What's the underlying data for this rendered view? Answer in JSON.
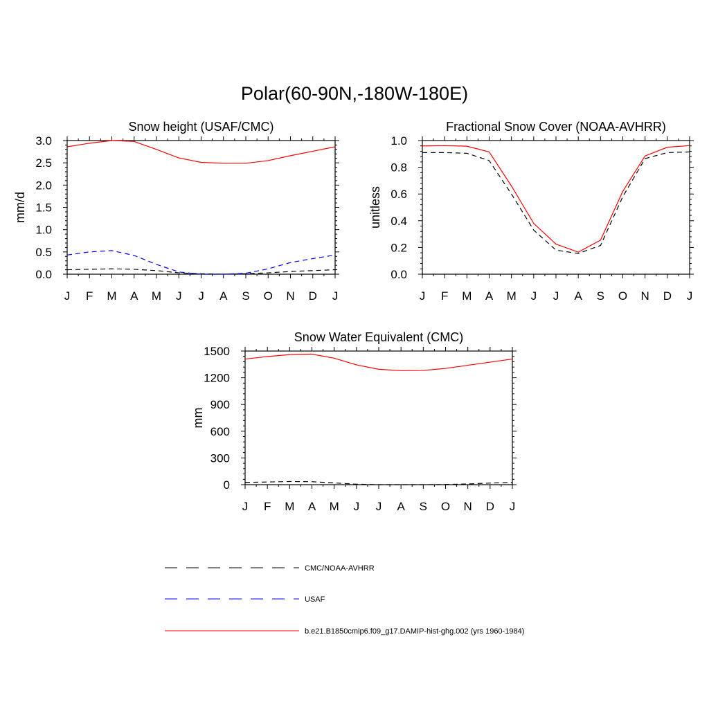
{
  "figure_title": "Polar(60-90N,-180W-180E)",
  "legend": [
    {
      "label": "CMC/NOAA-AVHRR",
      "color": "#000000",
      "dash": "dashed"
    },
    {
      "label": "USAF",
      "color": "#0000ff",
      "dash": "dashed"
    },
    {
      "label": "b.e21.B1850cmip6.f09_g17.DAMIP-hist-ghg.002 (yrs 1960-1984)",
      "color": "#ff0000",
      "dash": "solid"
    }
  ],
  "chart_data": [
    {
      "type": "line",
      "title": "Snow height (USAF/CMC)",
      "xlabel": "",
      "ylabel": "mm/d",
      "categories": [
        "J",
        "F",
        "M",
        "A",
        "M",
        "J",
        "J",
        "A",
        "S",
        "O",
        "N",
        "D",
        "J"
      ],
      "ylim": [
        0,
        3.0
      ],
      "yticks": [
        "0.0",
        "0.5",
        "1.0",
        "1.5",
        "2.0",
        "2.5",
        "3.0"
      ],
      "yticks_values": [
        0,
        0.5,
        1.0,
        1.5,
        2.0,
        2.5,
        3.0
      ],
      "series": [
        {
          "name": "b.e21.B1850cmip6.f09_g17.DAMIP-hist-ghg.002 (yrs 1960-1984)",
          "color": "#ff0000",
          "dash": "solid",
          "values": [
            2.86,
            2.94,
            3.0,
            2.98,
            2.8,
            2.61,
            2.51,
            2.49,
            2.49,
            2.55,
            2.66,
            2.76,
            2.86
          ]
        },
        {
          "name": "CMC/NOAA-AVHRR",
          "color": "#000000",
          "dash": "dashed",
          "values": [
            0.1,
            0.11,
            0.12,
            0.11,
            0.08,
            0.03,
            0.01,
            0.0,
            0.01,
            0.03,
            0.06,
            0.08,
            0.1
          ]
        },
        {
          "name": "USAF",
          "color": "#0000ff",
          "dash": "dashed",
          "values": [
            0.43,
            0.5,
            0.53,
            0.42,
            0.22,
            0.05,
            0.0,
            0.0,
            0.02,
            0.12,
            0.26,
            0.35,
            0.43
          ]
        }
      ]
    },
    {
      "type": "line",
      "title": "Fractional Snow Cover (NOAA-AVHRR)",
      "xlabel": "",
      "ylabel": "unitless",
      "categories": [
        "J",
        "F",
        "M",
        "A",
        "M",
        "J",
        "J",
        "A",
        "S",
        "O",
        "N",
        "D",
        "J"
      ],
      "ylim": [
        0,
        1.0
      ],
      "yticks": [
        "0.0",
        "0.2",
        "0.4",
        "0.6",
        "0.8",
        "1.0"
      ],
      "yticks_values": [
        0,
        0.2,
        0.4,
        0.6,
        0.8,
        1.0
      ],
      "series": [
        {
          "name": "b.e21.B1850cmip6.f09_g17.DAMIP-hist-ghg.002 (yrs 1960-1984)",
          "color": "#ff0000",
          "dash": "solid",
          "values": [
            0.96,
            0.962,
            0.958,
            0.915,
            0.66,
            0.38,
            0.225,
            0.165,
            0.255,
            0.62,
            0.885,
            0.95,
            0.962
          ]
        },
        {
          "name": "CMC/NOAA-AVHRR",
          "color": "#000000",
          "dash": "dashed",
          "values": [
            0.91,
            0.91,
            0.905,
            0.85,
            0.6,
            0.33,
            0.18,
            0.155,
            0.215,
            0.58,
            0.865,
            0.91,
            0.915
          ]
        }
      ]
    },
    {
      "type": "line",
      "title": "Snow Water Equivalent (CMC)",
      "xlabel": "",
      "ylabel": "mm",
      "categories": [
        "J",
        "F",
        "M",
        "A",
        "M",
        "J",
        "J",
        "A",
        "S",
        "O",
        "N",
        "D",
        "J"
      ],
      "ylim": [
        0,
        1500
      ],
      "yticks": [
        "0",
        "300",
        "600",
        "900",
        "1200",
        "1500"
      ],
      "yticks_values": [
        0,
        300,
        600,
        900,
        1200,
        1500
      ],
      "series": [
        {
          "name": "b.e21.B1850cmip6.f09_g17.DAMIP-hist-ghg.002 (yrs 1960-1984)",
          "color": "#ff0000",
          "dash": "solid",
          "values": [
            1410,
            1438,
            1460,
            1465,
            1420,
            1345,
            1295,
            1280,
            1282,
            1305,
            1340,
            1375,
            1410
          ]
        },
        {
          "name": "CMC/NOAA-AVHRR",
          "color": "#000000",
          "dash": "dashed",
          "values": [
            25,
            30,
            35,
            33,
            20,
            5,
            0,
            0,
            0,
            2,
            8,
            18,
            25
          ]
        }
      ]
    }
  ]
}
